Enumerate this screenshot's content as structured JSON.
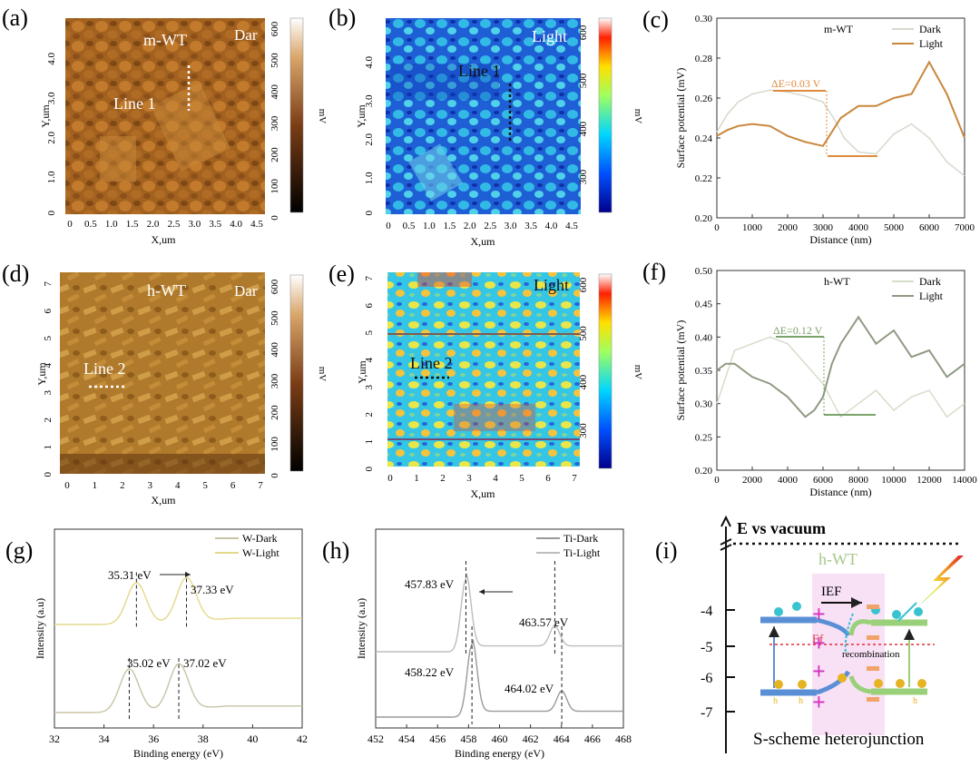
{
  "panels": {
    "a": {
      "label": "(a)",
      "sample": "m-WT",
      "mode": "Dar",
      "line": "Line 1",
      "xlabel": "X,um",
      "ylabel": "Y,um",
      "cbar_unit": "mV",
      "xticks": [
        "0",
        "0.5",
        "1.0",
        "1.5",
        "2.0",
        "2.5",
        "3.0",
        "3.5",
        "4.0",
        "4.5"
      ],
      "yticks": [
        "4.0",
        "3.0",
        "2.0",
        "1.0",
        "0"
      ],
      "cbar_ticks": [
        "600",
        "500",
        "400",
        "300",
        "200",
        "100",
        "0"
      ]
    },
    "b": {
      "label": "(b)",
      "mode": "Light",
      "line": "Line 1",
      "xlabel": "X,um",
      "ylabel": "Y,um",
      "cbar_unit": "mV",
      "xticks": [
        "0",
        "0.5",
        "1.0",
        "1.5",
        "2.0",
        "2.5",
        "3.0",
        "3.5",
        "4.0",
        "4.5"
      ],
      "yticks": [
        "4.0",
        "3.0",
        "2.0",
        "1.0",
        "0"
      ],
      "cbar_ticks": [
        "600",
        "500",
        "400",
        "300"
      ]
    },
    "d": {
      "label": "(d)",
      "sample": "h-WT",
      "mode": "Dar",
      "line": "Line 2",
      "xlabel": "X,um",
      "ylabel": "Y,um",
      "cbar_unit": "mV",
      "xticks": [
        "0",
        "1",
        "2",
        "3",
        "4",
        "5",
        "6",
        "7"
      ],
      "yticks": [
        "7",
        "6",
        "5",
        "4",
        "3",
        "2",
        "1",
        "0"
      ],
      "cbar_ticks": [
        "600",
        "500",
        "400",
        "300",
        "200",
        "100",
        "0"
      ]
    },
    "e": {
      "label": "(e)",
      "mode": "Light",
      "line": "Line 2",
      "xlabel": "X,um",
      "ylabel": "Y,um",
      "cbar_unit": "mV",
      "xticks": [
        "0",
        "1",
        "2",
        "3",
        "4",
        "5",
        "6",
        "7"
      ],
      "yticks": [
        "7",
        "6",
        "5",
        "4",
        "3",
        "2",
        "1",
        "0"
      ],
      "cbar_ticks": [
        "600",
        "500",
        "400",
        "300"
      ]
    },
    "c": {
      "label": "(c)",
      "annotation": "ΔE=0.03 V"
    },
    "f": {
      "label": "(f)",
      "annotation": "ΔE=0.12 V"
    },
    "g": {
      "label": "(g)",
      "annotations": [
        "35.31 eV",
        "37.33 eV",
        "35.02 eV",
        "37.02 eV"
      ]
    },
    "h": {
      "label": "(h)",
      "annotations": [
        "457.83 eV",
        "463.57 eV",
        "458.22 eV",
        "464.02 eV"
      ]
    },
    "i": {
      "label": "(i)",
      "title": "E vs vacuum",
      "sample": "h-WT",
      "ief": "IEF",
      "ef": "Ef",
      "recombination": "recombination",
      "holes": "h",
      "caption": "S-scheme heterojunction",
      "yticks": [
        "-4",
        "-5",
        "-6",
        "-7"
      ]
    }
  },
  "chart_data": [
    {
      "id": "c",
      "type": "line",
      "title": "m-WT",
      "xlabel": "Distance (nm)",
      "ylabel": "Surface potential (mV)",
      "xlim": [
        0,
        7000
      ],
      "ylim": [
        0.2,
        0.3
      ],
      "xticks": [
        0,
        1000,
        2000,
        3000,
        4000,
        5000,
        6000,
        7000
      ],
      "yticks": [
        0.2,
        0.22,
        0.24,
        0.26,
        0.28,
        0.3
      ],
      "series": [
        {
          "name": "Dark",
          "color": "#d6d9cc",
          "x": [
            0,
            300,
            600,
            1000,
            1500,
            2000,
            2500,
            3000,
            3300,
            3600,
            4000,
            4500,
            5000,
            5500,
            6000,
            6500,
            7000
          ],
          "y": [
            0.243,
            0.252,
            0.258,
            0.262,
            0.264,
            0.263,
            0.261,
            0.258,
            0.25,
            0.24,
            0.233,
            0.232,
            0.242,
            0.247,
            0.24,
            0.228,
            0.221
          ]
        },
        {
          "name": "Light",
          "color": "#c9873c",
          "x": [
            0,
            300,
            600,
            1000,
            1500,
            2000,
            2500,
            3000,
            3500,
            4000,
            4500,
            5000,
            5500,
            6000,
            6500,
            7000
          ],
          "y": [
            0.241,
            0.244,
            0.246,
            0.247,
            0.246,
            0.241,
            0.238,
            0.236,
            0.25,
            0.256,
            0.256,
            0.26,
            0.262,
            0.278,
            0.262,
            0.24
          ]
        }
      ]
    },
    {
      "id": "f",
      "type": "line",
      "title": "h-WT",
      "xlabel": "Distance (nm)",
      "ylabel": "Surface potential (mV)",
      "xlim": [
        0,
        14000
      ],
      "ylim": [
        0.2,
        0.5
      ],
      "xticks": [
        0,
        2000,
        4000,
        6000,
        8000,
        10000,
        12000,
        14000
      ],
      "yticks": [
        0.2,
        0.25,
        0.3,
        0.35,
        0.4,
        0.45,
        0.5
      ],
      "series": [
        {
          "name": "Dark",
          "color": "#d6ddc8",
          "x": [
            0,
            500,
            1000,
            2000,
            3000,
            4000,
            5000,
            6000,
            7000,
            8000,
            9000,
            10000,
            11000,
            12000,
            13000,
            14000
          ],
          "y": [
            0.3,
            0.34,
            0.38,
            0.39,
            0.4,
            0.39,
            0.36,
            0.33,
            0.28,
            0.3,
            0.32,
            0.29,
            0.31,
            0.32,
            0.28,
            0.3
          ]
        },
        {
          "name": "Light",
          "color": "#8f9a82",
          "x": [
            0,
            500,
            1000,
            2000,
            3000,
            4000,
            5000,
            5500,
            6000,
            6500,
            7000,
            8000,
            9000,
            10000,
            11000,
            12000,
            13000,
            14000
          ],
          "y": [
            0.35,
            0.36,
            0.36,
            0.34,
            0.33,
            0.31,
            0.28,
            0.29,
            0.31,
            0.36,
            0.39,
            0.43,
            0.39,
            0.41,
            0.37,
            0.38,
            0.34,
            0.36
          ]
        }
      ]
    },
    {
      "id": "g",
      "type": "line",
      "xlabel": "Binding energy (eV)",
      "ylabel": "Intensity (a.u)",
      "xlim": [
        32,
        42
      ],
      "xticks": [
        32,
        34,
        36,
        38,
        40,
        42
      ],
      "series": [
        {
          "name": "W-Dark",
          "color": "#c8c4a6",
          "peaks": [
            35.02,
            37.02
          ]
        },
        {
          "name": "W-Light",
          "color": "#e3d98a",
          "peaks": [
            35.31,
            37.33
          ]
        }
      ]
    },
    {
      "id": "h",
      "type": "line",
      "xlabel": "Binding energy (eV)",
      "ylabel": "Intensity (a.u)",
      "xlim": [
        452,
        468
      ],
      "xticks": [
        452,
        454,
        456,
        458,
        460,
        462,
        464,
        466,
        468
      ],
      "series": [
        {
          "name": "Ti-Dark",
          "color": "#9a9a9a",
          "peaks": [
            458.22,
            464.02
          ]
        },
        {
          "name": "Ti-Light",
          "color": "#bdbdbd",
          "peaks": [
            457.83,
            463.57
          ]
        }
      ]
    }
  ]
}
